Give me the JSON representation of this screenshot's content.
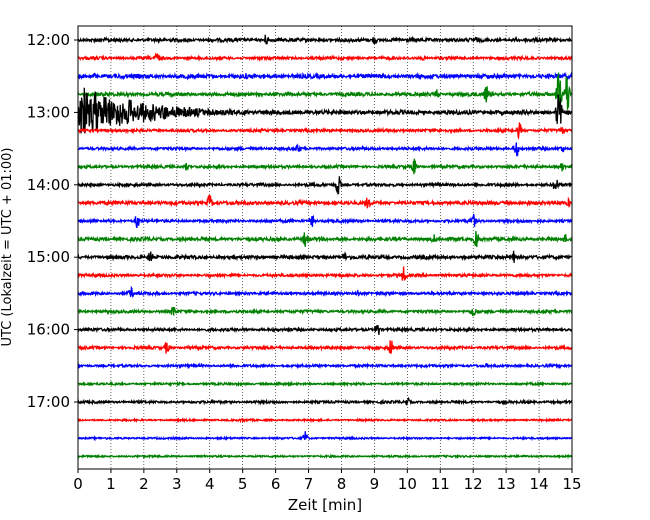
{
  "chart_data": {
    "type": "line",
    "title": "",
    "xlabel": "Zeit  [min]",
    "ylabel": "UTC (Lokalzeit = UTC + 01:00)",
    "xlim": [
      0,
      15
    ],
    "x_ticks": [
      0,
      1,
      2,
      3,
      4,
      5,
      6,
      7,
      8,
      9,
      10,
      11,
      12,
      13,
      14,
      15
    ],
    "x_tick_labels": [
      "0",
      "1",
      "2",
      "3",
      "4",
      "5",
      "6",
      "7",
      "8",
      "9",
      "10",
      "11",
      "12",
      "13",
      "14",
      "15"
    ],
    "y_tick_labels": [
      "12:00",
      "13:00",
      "14:00",
      "15:00",
      "16:00",
      "17:00"
    ],
    "grid": "vertical dotted at each minute",
    "legend": "none",
    "color_cycle": [
      "#000000",
      "#ff0000",
      "#0000ff",
      "#008000"
    ],
    "trace_start_times": [
      "12:00",
      "12:15",
      "12:30",
      "12:45",
      "13:00",
      "13:15",
      "13:30",
      "13:45",
      "14:00",
      "14:15",
      "14:30",
      "14:45",
      "15:00",
      "15:15",
      "15:30",
      "15:45",
      "16:00",
      "16:15",
      "16:30",
      "16:45",
      "17:00",
      "17:15",
      "17:30",
      "17:45"
    ],
    "traces": [
      {
        "start": "12:00",
        "color": "#000000",
        "amplitude": 0.1,
        "spikes": [
          [
            5.7,
            0.35
          ],
          [
            9.0,
            0.3
          ],
          [
            12.1,
            0.2
          ]
        ]
      },
      {
        "start": "12:15",
        "color": "#ff0000",
        "amplitude": 0.08,
        "spikes": [
          [
            2.4,
            0.45
          ],
          [
            10.5,
            0.15
          ]
        ]
      },
      {
        "start": "12:30",
        "color": "#0000ff",
        "amplitude": 0.12,
        "spikes": [
          [
            0.5,
            0.2
          ],
          [
            5.1,
            0.2
          ],
          [
            10.3,
            0.15
          ]
        ]
      },
      {
        "start": "12:45",
        "color": "#008000",
        "amplitude": 0.1,
        "spikes": [
          [
            10.9,
            0.3
          ],
          [
            12.4,
            0.55
          ],
          [
            14.6,
            1.5
          ],
          [
            14.85,
            1.5
          ]
        ]
      },
      {
        "start": "13:00",
        "color": "#000000",
        "amplitude": 0.12,
        "event": {
          "start": 0.0,
          "end": 6.5,
          "peak": 1.6
        },
        "spikes": [
          [
            14.6,
            1.5
          ]
        ]
      },
      {
        "start": "13:15",
        "color": "#ff0000",
        "amplitude": 0.08,
        "spikes": [
          [
            13.4,
            0.5
          ],
          [
            14.7,
            0.25
          ]
        ]
      },
      {
        "start": "13:30",
        "color": "#0000ff",
        "amplitude": 0.08,
        "spikes": [
          [
            6.7,
            0.3
          ],
          [
            13.3,
            0.55
          ],
          [
            14.7,
            0.25
          ]
        ]
      },
      {
        "start": "13:45",
        "color": "#008000",
        "amplitude": 0.08,
        "spikes": [
          [
            3.3,
            0.25
          ],
          [
            10.2,
            0.55
          ],
          [
            14.7,
            0.3
          ]
        ]
      },
      {
        "start": "14:00",
        "color": "#000000",
        "amplitude": 0.08,
        "spikes": [
          [
            7.9,
            0.7
          ],
          [
            14.5,
            0.5
          ]
        ]
      },
      {
        "start": "14:15",
        "color": "#ff0000",
        "amplitude": 0.1,
        "spikes": [
          [
            4.0,
            0.55
          ],
          [
            8.8,
            0.4
          ],
          [
            14.9,
            0.25
          ]
        ]
      },
      {
        "start": "14:30",
        "color": "#0000ff",
        "amplitude": 0.08,
        "spikes": [
          [
            1.8,
            0.5
          ],
          [
            7.1,
            0.4
          ],
          [
            12.0,
            0.5
          ]
        ]
      },
      {
        "start": "14:45",
        "color": "#008000",
        "amplitude": 0.1,
        "spikes": [
          [
            6.9,
            0.5
          ],
          [
            10.8,
            0.3
          ],
          [
            12.1,
            0.55
          ],
          [
            14.8,
            0.3
          ]
        ]
      },
      {
        "start": "15:00",
        "color": "#000000",
        "amplitude": 0.1,
        "spikes": [
          [
            2.2,
            0.45
          ],
          [
            8.1,
            0.3
          ],
          [
            13.2,
            0.5
          ]
        ]
      },
      {
        "start": "15:15",
        "color": "#ff0000",
        "amplitude": 0.08,
        "spikes": [
          [
            9.9,
            0.55
          ]
        ]
      },
      {
        "start": "15:30",
        "color": "#0000ff",
        "amplitude": 0.08,
        "spikes": [
          [
            1.6,
            0.4
          ],
          [
            8.5,
            0.2
          ]
        ]
      },
      {
        "start": "15:45",
        "color": "#008000",
        "amplitude": 0.08,
        "spikes": [
          [
            2.9,
            0.4
          ],
          [
            12.0,
            0.45
          ]
        ]
      },
      {
        "start": "16:00",
        "color": "#000000",
        "amplitude": 0.08,
        "spikes": [
          [
            9.1,
            0.45
          ]
        ]
      },
      {
        "start": "16:15",
        "color": "#ff0000",
        "amplitude": 0.08,
        "spikes": [
          [
            2.7,
            0.45
          ],
          [
            9.5,
            0.6
          ]
        ]
      },
      {
        "start": "16:30",
        "color": "#0000ff",
        "amplitude": 0.07,
        "spikes": [
          [
            12.4,
            0.15
          ]
        ]
      },
      {
        "start": "16:45",
        "color": "#008000",
        "amplitude": 0.06,
        "spikes": [
          [
            6.1,
            0.15
          ]
        ]
      },
      {
        "start": "17:00",
        "color": "#000000",
        "amplitude": 0.07,
        "spikes": [
          [
            10.0,
            0.3
          ]
        ]
      },
      {
        "start": "17:15",
        "color": "#ff0000",
        "amplitude": 0.05,
        "spikes": [
          [
            5.0,
            0.15
          ]
        ]
      },
      {
        "start": "17:30",
        "color": "#0000ff",
        "amplitude": 0.05,
        "spikes": [
          [
            6.9,
            0.4
          ]
        ]
      },
      {
        "start": "17:45",
        "color": "#008000",
        "amplitude": 0.05,
        "spikes": []
      }
    ]
  }
}
